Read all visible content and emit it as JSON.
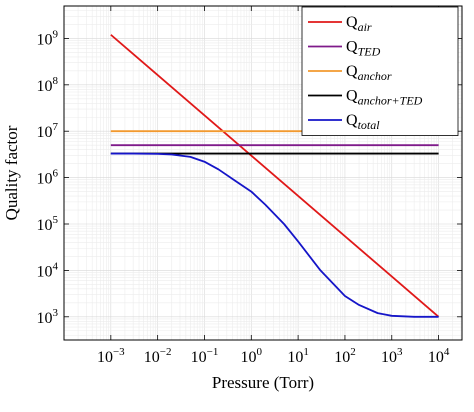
{
  "chart_data": {
    "type": "line",
    "title": "",
    "xlabel": "Pressure (Torr)",
    "ylabel": "Quality factor",
    "xscale": "log",
    "yscale": "log",
    "xlim": [
      0.0001,
      31623
    ],
    "ylim": [
      316,
      5000000000
    ],
    "grid": true,
    "legend_position": "top-right",
    "x_ticks": [
      {
        "base": "10",
        "exp": "−3",
        "value": 0.001
      },
      {
        "base": "10",
        "exp": "−2",
        "value": 0.01
      },
      {
        "base": "10",
        "exp": "−1",
        "value": 0.1
      },
      {
        "base": "10",
        "exp": "0",
        "value": 1
      },
      {
        "base": "10",
        "exp": "1",
        "value": 10
      },
      {
        "base": "10",
        "exp": "2",
        "value": 100
      },
      {
        "base": "10",
        "exp": "3",
        "value": 1000
      },
      {
        "base": "10",
        "exp": "4",
        "value": 10000
      }
    ],
    "y_ticks": [
      {
        "base": "10",
        "exp": "3",
        "value": 1000
      },
      {
        "base": "10",
        "exp": "4",
        "value": 10000
      },
      {
        "base": "10",
        "exp": "5",
        "value": 100000
      },
      {
        "base": "10",
        "exp": "6",
        "value": 1000000
      },
      {
        "base": "10",
        "exp": "7",
        "value": 10000000
      },
      {
        "base": "10",
        "exp": "8",
        "value": 100000000
      },
      {
        "base": "10",
        "exp": "9",
        "value": 1000000000
      }
    ],
    "series": [
      {
        "name": "Q",
        "sub": "air",
        "color": "#e01818",
        "x": [
          0.001,
          10000
        ],
        "y": [
          1200000000,
          1000
        ]
      },
      {
        "name": "Q",
        "sub": "TED",
        "color": "#7f1a8a",
        "x": [
          0.001,
          10000
        ],
        "y": [
          5000000,
          5000000
        ]
      },
      {
        "name": "Q",
        "sub": "anchor",
        "color": "#f2992e",
        "x": [
          0.001,
          10000
        ],
        "y": [
          10000000,
          10000000
        ]
      },
      {
        "name": "Q",
        "sub": "anchor+TED",
        "color": "#000000",
        "x": [
          0.001,
          10000
        ],
        "y": [
          3300000,
          3300000
        ]
      },
      {
        "name": "Q",
        "sub": "total",
        "color": "#1515c8",
        "x": [
          0.001,
          0.003,
          0.01,
          0.02,
          0.05,
          0.1,
          0.2,
          0.5,
          1,
          2,
          5,
          10,
          30,
          100,
          200,
          500,
          1000,
          3000,
          10000
        ],
        "y": [
          3300000,
          3300000,
          3250000,
          3150000,
          2800000,
          2200000,
          1500000,
          800000,
          500000,
          260000,
          100000,
          42000,
          10000,
          2800,
          1800,
          1200,
          1050,
          1000,
          1000
        ]
      }
    ]
  }
}
